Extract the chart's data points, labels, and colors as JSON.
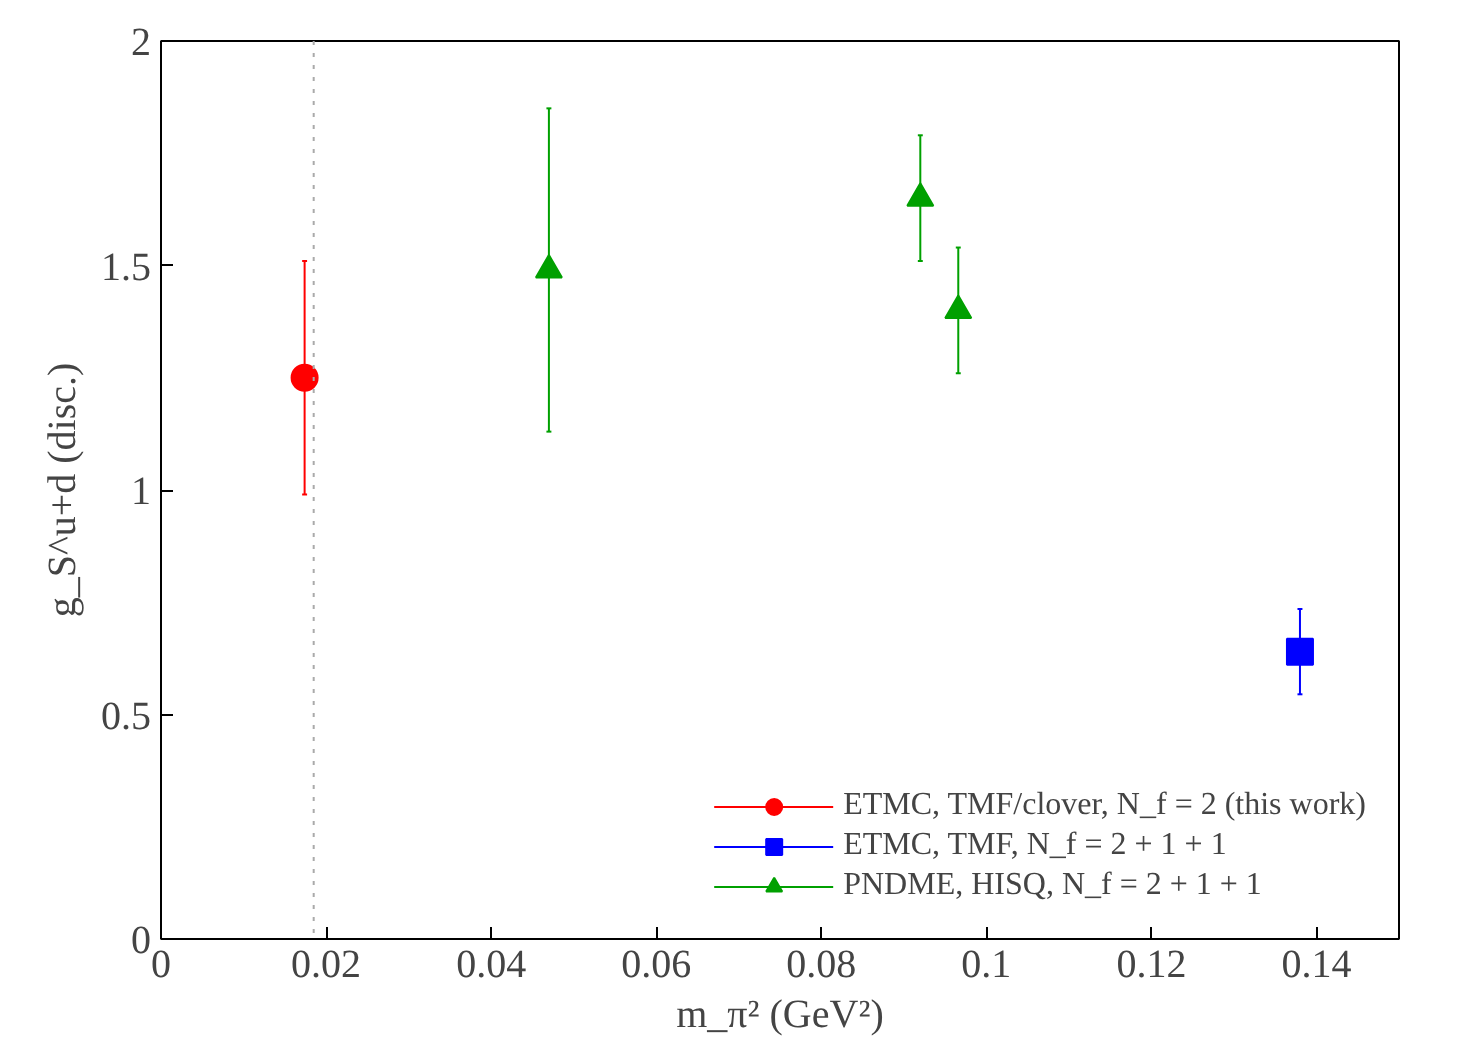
{
  "chart_data": {
    "type": "scatter",
    "xlabel": "m_π² (GeV²)",
    "ylabel": "g_S^u+d (disc.)",
    "xlim": [
      0,
      0.15
    ],
    "ylim": [
      0,
      2
    ],
    "xticks": [
      0,
      0.02,
      0.04,
      0.06,
      0.08,
      0.1,
      0.12,
      0.14
    ],
    "yticks": [
      0,
      {
        "value": 0.5,
        "label": "0.5"
      },
      1,
      {
        "value": 1.5,
        "label": "1.5"
      },
      2
    ],
    "grid": false,
    "legend": "bottom right",
    "ref_lines": [
      {
        "axis": "x",
        "value": 0.0185,
        "label": null,
        "color": "#aaaaaa",
        "line_style": "dotted"
      }
    ],
    "series": [
      {
        "name": "ETMC, TMF/clover, N_f = 2 (this work)",
        "color": "#ff0000",
        "marker": "circle",
        "x": [
          0.0174
        ],
        "values": [
          1.25
        ],
        "errors": [
          [
            0.99,
            1.51
          ]
        ]
      },
      {
        "name": "ETMC, TMF, N_f = 2 + 1 + 1",
        "color": "#0000ff",
        "marker": "square",
        "x": [
          0.138
        ],
        "values": [
          0.64
        ],
        "errors": [
          [
            0.545,
            0.735
          ]
        ]
      },
      {
        "name": "PNDME, HISQ, N_f = 2 + 1 + 1",
        "color": "#00a000",
        "marker": "triangle",
        "x": [
          0.047,
          0.092,
          0.0966
        ],
        "values": [
          1.49,
          1.65,
          1.4
        ],
        "errors": [
          [
            1.13,
            1.85
          ],
          [
            1.51,
            1.79
          ],
          [
            1.26,
            1.54
          ]
        ]
      }
    ]
  }
}
